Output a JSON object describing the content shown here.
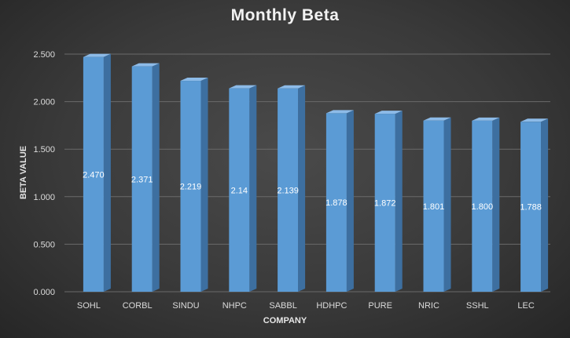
{
  "chart_data": {
    "type": "bar",
    "title": "Monthly Beta",
    "xlabel": "COMPANY",
    "ylabel": "BETA VALUE",
    "categories": [
      "SOHL",
      "CORBL",
      "SINDU",
      "NHPC",
      "SABBL",
      "HDHPC",
      "PURE",
      "NRIC",
      "SSHL",
      "LEC"
    ],
    "values": [
      2.47,
      2.371,
      2.219,
      2.14,
      2.139,
      1.878,
      1.872,
      1.801,
      1.8,
      1.788
    ],
    "data_labels": [
      "2.470",
      "2.371",
      "2.219",
      "2.14",
      "2.139",
      "1.878",
      "1.872",
      "1.801",
      "1.800",
      "1.788"
    ],
    "y_ticks": [
      "0.000",
      "0.500",
      "1.000",
      "1.500",
      "2.000",
      "2.500"
    ],
    "ylim": [
      0,
      2.5
    ],
    "grid": true,
    "legend": "none",
    "colors": {
      "bar_front": "#5b9bd5",
      "bar_side": "#3d6fa0",
      "bar_top": "#8dbbe8",
      "grid": "#6a6a6a"
    }
  }
}
